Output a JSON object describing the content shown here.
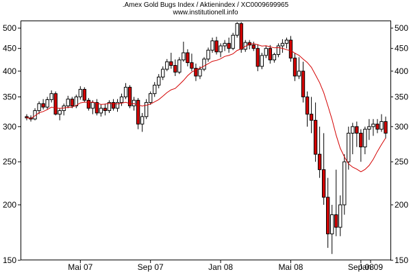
{
  "header": {
    "title": ".Amex Gold Bugs Index / Aktienindex / XC0009699965",
    "subtitle": "www.institutionell.info"
  },
  "chart_data": {
    "type": "candlestick",
    "title": ".Amex Gold Bugs Index / Aktienindex / XC0009699965",
    "subtitle": "www.institutionell.info",
    "scale": "log",
    "ylim": [
      150,
      520
    ],
    "yticks": [
      150,
      200,
      250,
      300,
      350,
      400,
      450,
      500
    ],
    "x_tick_labels": [
      "Mai 07",
      "Sep 07",
      "Jan 08",
      "Mai 08",
      "Sep 08",
      "Jan 09"
    ],
    "grid": false,
    "legend": "none",
    "colors": {
      "up": "#ffffff",
      "down": "#d40000",
      "wick": "#000000",
      "moving_average": "#d40000"
    },
    "candles": [
      [
        316,
        320,
        310,
        314
      ],
      [
        314,
        318,
        308,
        312
      ],
      [
        312,
        330,
        310,
        326
      ],
      [
        326,
        342,
        320,
        338
      ],
      [
        338,
        346,
        328,
        332
      ],
      [
        332,
        350,
        328,
        345
      ],
      [
        345,
        362,
        340,
        356
      ],
      [
        356,
        360,
        318,
        320
      ],
      [
        320,
        330,
        310,
        326
      ],
      [
        326,
        338,
        318,
        334
      ],
      [
        334,
        352,
        330,
        346
      ],
      [
        346,
        350,
        330,
        334
      ],
      [
        334,
        354,
        330,
        350
      ],
      [
        350,
        370,
        345,
        364
      ],
      [
        364,
        368,
        340,
        344
      ],
      [
        344,
        348,
        326,
        330
      ],
      [
        330,
        344,
        320,
        340
      ],
      [
        340,
        346,
        318,
        322
      ],
      [
        322,
        336,
        316,
        330
      ],
      [
        330,
        338,
        318,
        326
      ],
      [
        326,
        344,
        322,
        340
      ],
      [
        340,
        346,
        326,
        330
      ],
      [
        330,
        346,
        324,
        340
      ],
      [
        340,
        356,
        334,
        350
      ],
      [
        350,
        376,
        346,
        368
      ],
      [
        368,
        372,
        330,
        334
      ],
      [
        334,
        350,
        326,
        344
      ],
      [
        344,
        348,
        296,
        304
      ],
      [
        304,
        322,
        292,
        316
      ],
      [
        316,
        346,
        312,
        340
      ],
      [
        340,
        360,
        336,
        356
      ],
      [
        356,
        378,
        350,
        372
      ],
      [
        372,
        394,
        366,
        388
      ],
      [
        388,
        410,
        382,
        404
      ],
      [
        404,
        426,
        400,
        420
      ],
      [
        420,
        440,
        405,
        412
      ],
      [
        412,
        425,
        390,
        398
      ],
      [
        398,
        430,
        394,
        424
      ],
      [
        424,
        466,
        420,
        440
      ],
      [
        440,
        448,
        410,
        418
      ],
      [
        418,
        438,
        400,
        406
      ],
      [
        406,
        416,
        380,
        390
      ],
      [
        390,
        410,
        384,
        404
      ],
      [
        404,
        430,
        400,
        426
      ],
      [
        426,
        452,
        420,
        446
      ],
      [
        446,
        476,
        440,
        468
      ],
      [
        468,
        478,
        436,
        442
      ],
      [
        442,
        462,
        430,
        456
      ],
      [
        456,
        470,
        444,
        462
      ],
      [
        462,
        476,
        440,
        450
      ],
      [
        450,
        488,
        446,
        482
      ],
      [
        482,
        516,
        476,
        512
      ],
      [
        512,
        516,
        440,
        448
      ],
      [
        448,
        470,
        442,
        464
      ],
      [
        464,
        470,
        448,
        458
      ],
      [
        458,
        466,
        444,
        450
      ],
      [
        450,
        460,
        400,
        410
      ],
      [
        410,
        440,
        404,
        434
      ],
      [
        434,
        456,
        428,
        450
      ],
      [
        450,
        458,
        416,
        424
      ],
      [
        424,
        440,
        418,
        436
      ],
      [
        436,
        462,
        430,
        456
      ],
      [
        456,
        472,
        440,
        462
      ],
      [
        462,
        476,
        450,
        470
      ],
      [
        470,
        480,
        420,
        428
      ],
      [
        428,
        440,
        380,
        390
      ],
      [
        390,
        430,
        384,
        400
      ],
      [
        400,
        420,
        340,
        350
      ],
      [
        350,
        360,
        300,
        320
      ],
      [
        320,
        350,
        290,
        310
      ],
      [
        310,
        340,
        250,
        260
      ],
      [
        260,
        300,
        230,
        240
      ],
      [
        240,
        290,
        200,
        208
      ],
      [
        208,
        230,
        160,
        172
      ],
      [
        172,
        200,
        155,
        190
      ],
      [
        190,
        240,
        170,
        178
      ],
      [
        178,
        210,
        170,
        200
      ],
      [
        200,
        260,
        190,
        250
      ],
      [
        250,
        300,
        240,
        290
      ],
      [
        290,
        306,
        260,
        300
      ],
      [
        300,
        308,
        270,
        290
      ],
      [
        290,
        296,
        250,
        270
      ],
      [
        270,
        300,
        260,
        296
      ],
      [
        296,
        312,
        280,
        300
      ],
      [
        300,
        312,
        286,
        304
      ],
      [
        304,
        312,
        290,
        296
      ],
      [
        296,
        320,
        292,
        308
      ],
      [
        308,
        316,
        282,
        290
      ]
    ]
  }
}
